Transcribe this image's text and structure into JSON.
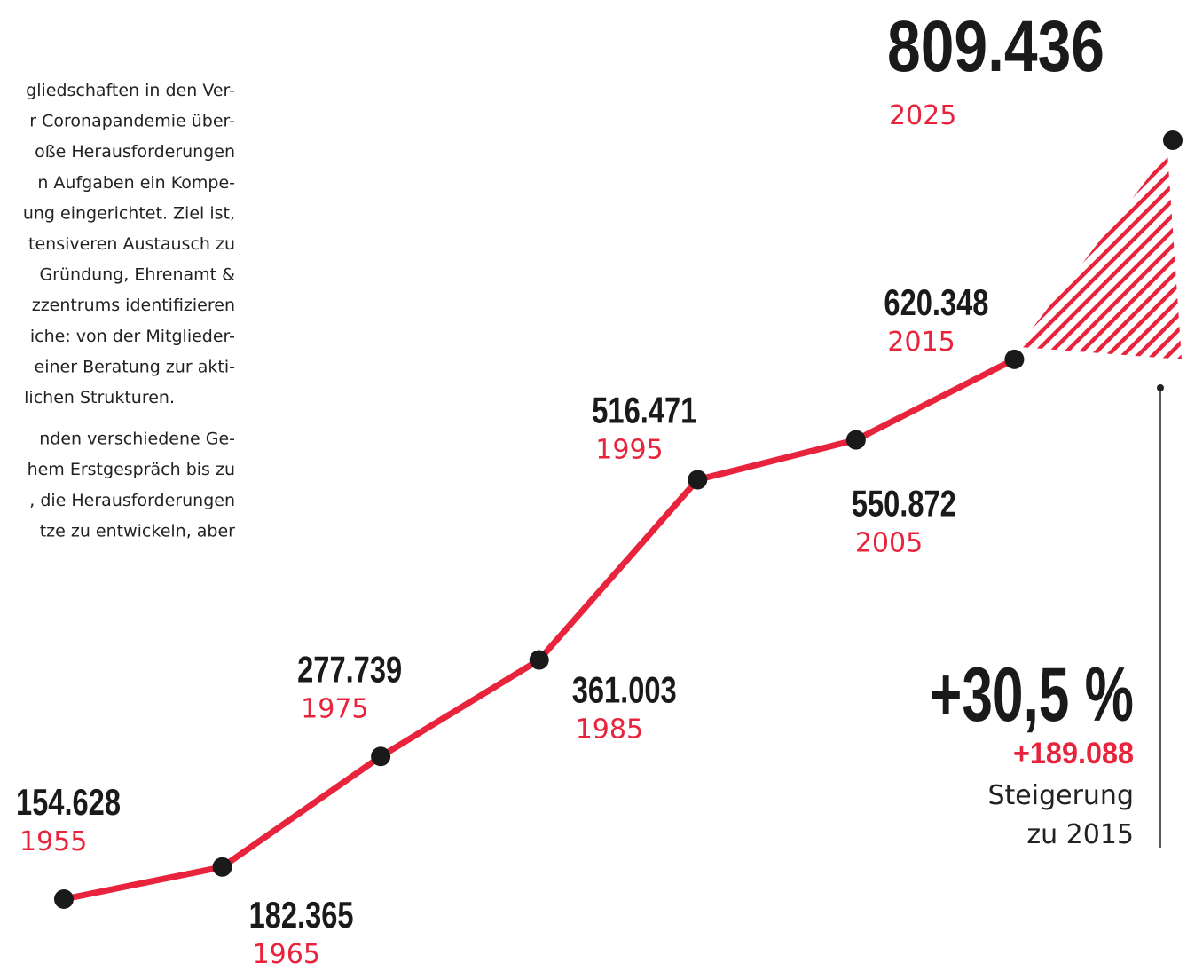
{
  "text": {
    "paragraphs": [
      [
        "gliedschaften in den Ver-",
        "r Coronapandemie über-",
        "oße Herausforderungen",
        "n Aufgaben ein Kompe-",
        "ung eingerichtet. Ziel ist,",
        "tensiveren Austausch zu",
        "Gründung, Ehrenamt &",
        "zzentrums identifizieren",
        "iche: von der Mitglieder-",
        "einer Beratung zur akti-",
        "lichen Strukturen."
      ],
      [
        "nden verschiedene Ge-",
        "hem Erstgespräch bis zu",
        ", die Herausforderungen",
        "tze zu entwickeln, aber"
      ]
    ]
  },
  "chart_data": {
    "type": "line",
    "x": [
      1955,
      1965,
      1975,
      1985,
      1995,
      2005,
      2015,
      2025
    ],
    "values": [
      154628,
      182365,
      277739,
      361003,
      516471,
      550872,
      620348,
      809436
    ],
    "value_labels": [
      "154.628",
      "182.365",
      "277.739",
      "361.003",
      "516.471",
      "550.872",
      "620.348",
      "809.436"
    ],
    "color": "#e8243c",
    "annotation": {
      "percent": "+30,5 %",
      "difference": "+189.088",
      "caption": [
        "Steigerung",
        "zu 2015"
      ]
    }
  }
}
